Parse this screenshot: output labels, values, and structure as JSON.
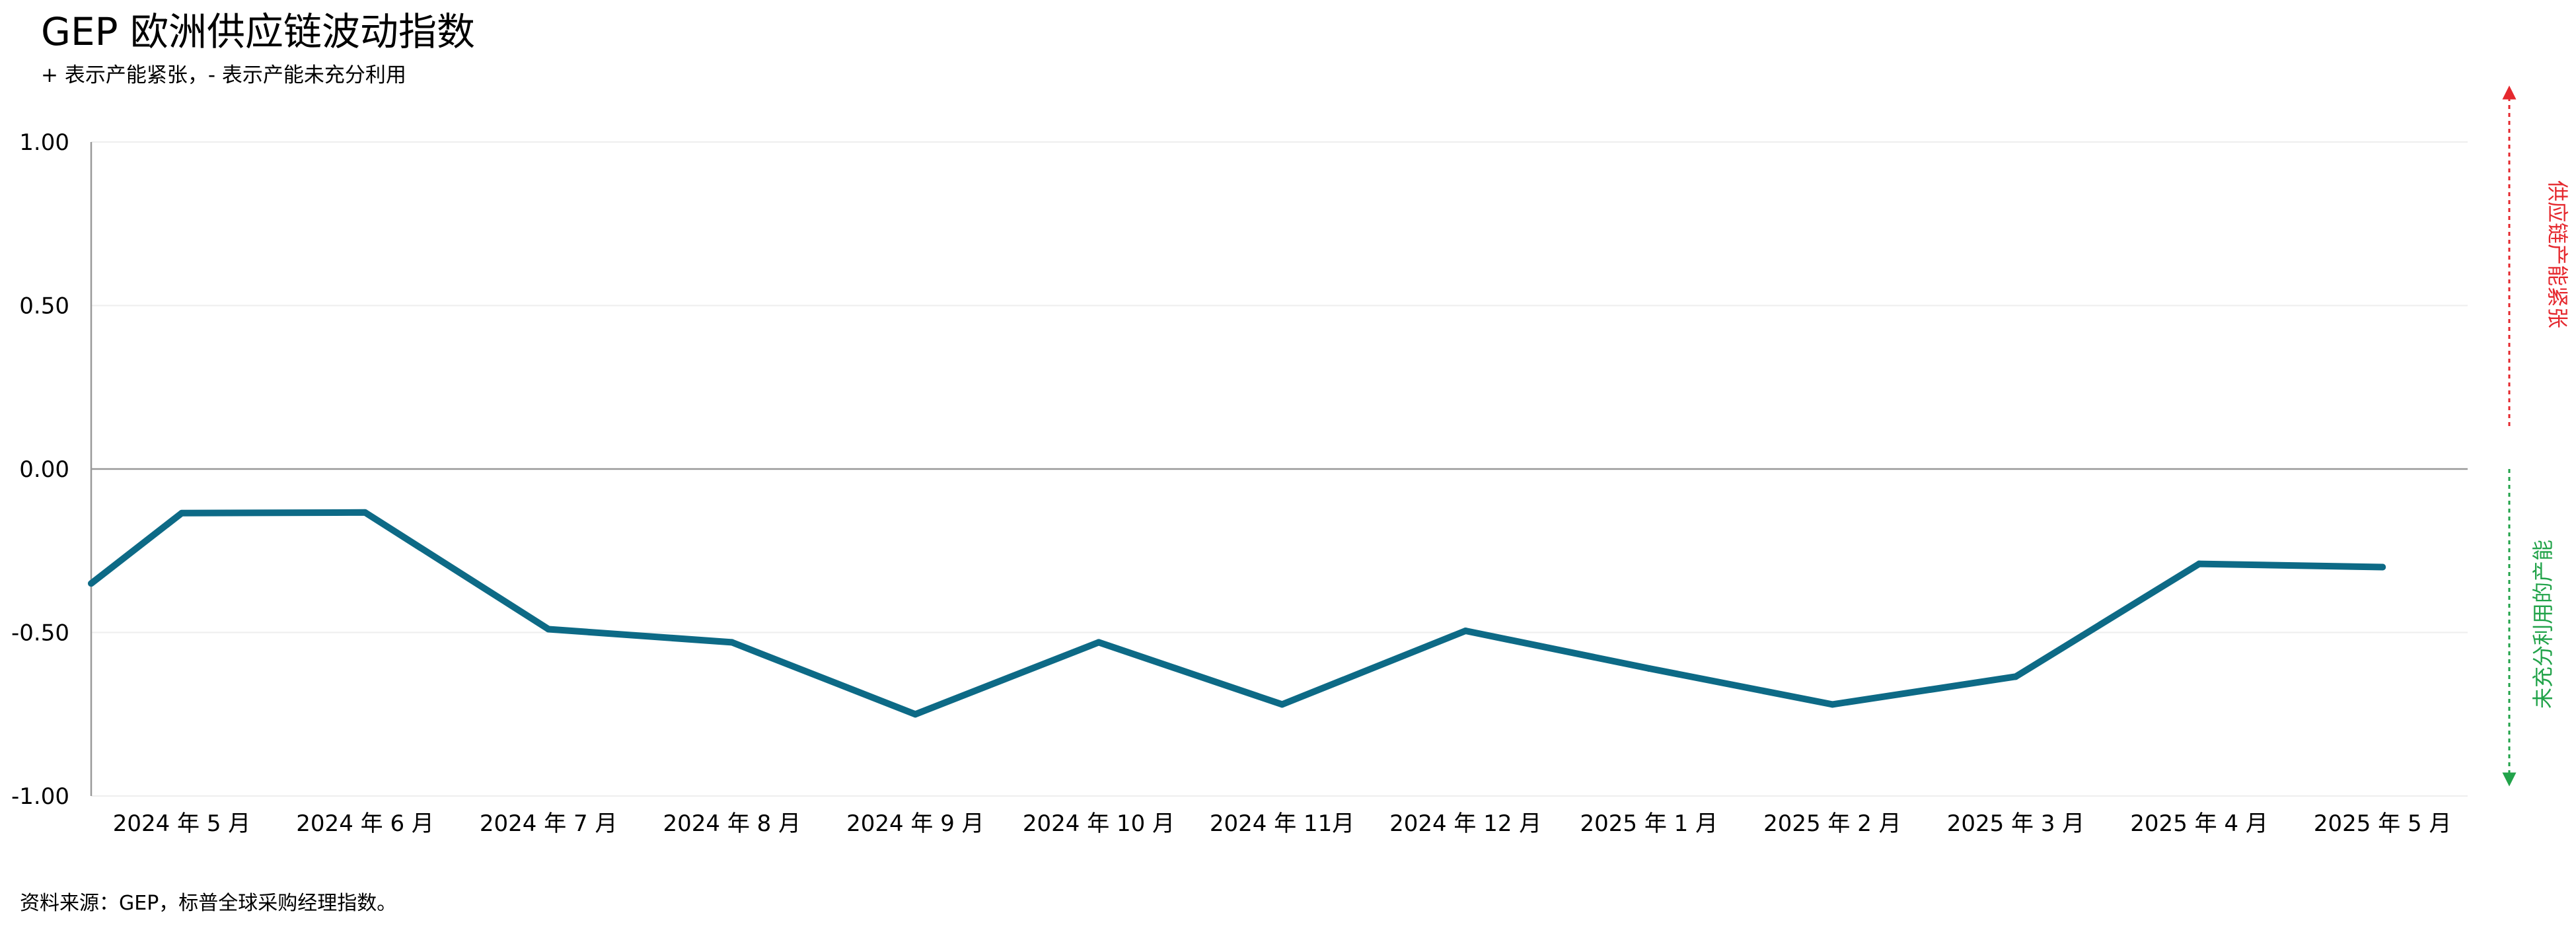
{
  "title": "GEP 欧洲供应链波动指数",
  "subtitle": "+ 表示产能紧张，- 表示产能未充分利用",
  "source": "资料来源：GEP，标普全球采购经理指数。",
  "side_labels": {
    "up": "供应链产能紧张",
    "down": "未充分利用的产能",
    "up_color": "#e5282e",
    "down_color": "#22a34a"
  },
  "colors": {
    "line": "#0d6a86",
    "axis": "#999999",
    "grid": "#eeeeee"
  },
  "chart_data": {
    "type": "line",
    "title": "GEP 欧洲供应链波动指数",
    "xlabel": "",
    "ylabel": "",
    "ylim": [
      -1.0,
      1.0
    ],
    "yticks": [
      "1.00",
      "0.50",
      "0.00",
      "-0.50",
      "-1.00"
    ],
    "ytick_values": [
      1.0,
      0.5,
      0.0,
      -0.5,
      -1.0
    ],
    "grid": true,
    "categories": [
      "2024 年 5 月",
      "2024 年 6 月",
      "2024 年 7 月",
      "2024 年 8 月",
      "2024 年 9 月",
      "2024 年 10 月",
      "2024 年 11月",
      "2024 年 12 月",
      "2025 年 1 月",
      "2025 年 2 月",
      "2025 年 3 月",
      "2025 年 4 月",
      "2025 年 5 月"
    ],
    "x_start_value": -0.35,
    "series": [
      {
        "values": [
          -0.135,
          -0.133,
          -0.49,
          -0.53,
          -0.75,
          -0.53,
          -0.72,
          -0.495,
          -0.61,
          -0.72,
          -0.635,
          -0.29,
          -0.3
        ]
      }
    ]
  }
}
